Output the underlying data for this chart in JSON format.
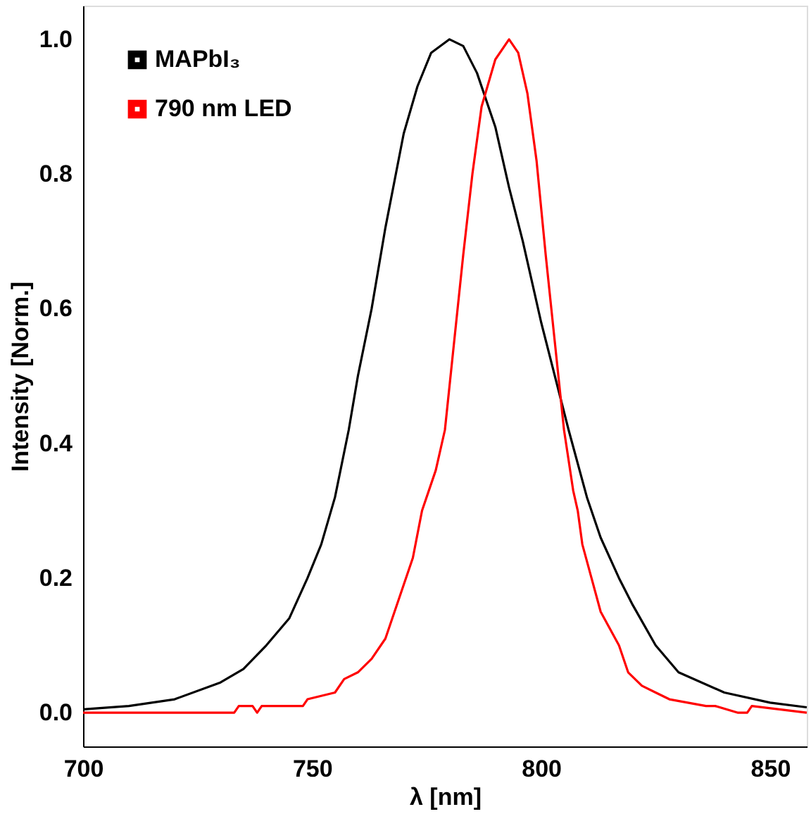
{
  "chart_data": {
    "type": "line",
    "xlabel": "λ [nm]",
    "ylabel": "Intensity [Norm.]",
    "xlim": [
      700,
      858
    ],
    "ylim": [
      -0.05,
      1.05
    ],
    "xticks": [
      700,
      750,
      800,
      850
    ],
    "yticks": [
      {
        "value": 0,
        "label": "0.0"
      },
      {
        "value": 0.2,
        "label": "0.2"
      },
      {
        "value": 0.4,
        "label": "0.4"
      },
      {
        "value": 0.6,
        "label": "0.6"
      },
      {
        "value": 0.8,
        "label": "0.8"
      },
      {
        "value": 1,
        "label": "1.0"
      }
    ],
    "grid": false,
    "legend": "top left",
    "marker": "none",
    "line_style": "solid",
    "series": [
      {
        "name": "MAPbI₃",
        "color": "#000000",
        "x": [
          700,
          710,
          720,
          730,
          735,
          740,
          745,
          749,
          752,
          755,
          758,
          760,
          763,
          766,
          770,
          773,
          776,
          780,
          783,
          786,
          790,
          793,
          796,
          800,
          803,
          806,
          810,
          813,
          817,
          820,
          825,
          830,
          840,
          850,
          858
        ],
        "values": [
          0.005,
          0.01,
          0.02,
          0.045,
          0.065,
          0.1,
          0.14,
          0.2,
          0.25,
          0.32,
          0.42,
          0.5,
          0.6,
          0.72,
          0.86,
          0.93,
          0.98,
          1.0,
          0.99,
          0.95,
          0.87,
          0.78,
          0.7,
          0.58,
          0.5,
          0.42,
          0.32,
          0.26,
          0.2,
          0.16,
          0.1,
          0.06,
          0.03,
          0.015,
          0.008
        ]
      },
      {
        "name": "790 nm LED",
        "color": "#ff0000",
        "x": [
          700,
          733,
          734,
          737,
          738,
          739,
          748,
          749,
          755,
          757,
          760,
          763,
          766,
          768,
          770,
          772,
          774,
          777,
          779,
          781,
          783,
          785,
          787,
          790,
          793,
          795,
          797,
          799,
          801,
          803,
          805,
          807,
          808,
          809,
          811,
          813,
          817,
          819,
          822,
          825,
          828,
          836,
          838,
          843,
          845,
          846,
          858
        ],
        "values": [
          0,
          0,
          0.01,
          0.01,
          0,
          0.01,
          0.01,
          0.02,
          0.03,
          0.05,
          0.06,
          0.08,
          0.11,
          0.15,
          0.19,
          0.23,
          0.3,
          0.36,
          0.42,
          0.55,
          0.68,
          0.8,
          0.9,
          0.97,
          1.0,
          0.98,
          0.92,
          0.82,
          0.68,
          0.55,
          0.42,
          0.33,
          0.3,
          0.25,
          0.2,
          0.15,
          0.1,
          0.06,
          0.04,
          0.03,
          0.02,
          0.01,
          0.01,
          0,
          0,
          0.01,
          0
        ]
      }
    ]
  }
}
